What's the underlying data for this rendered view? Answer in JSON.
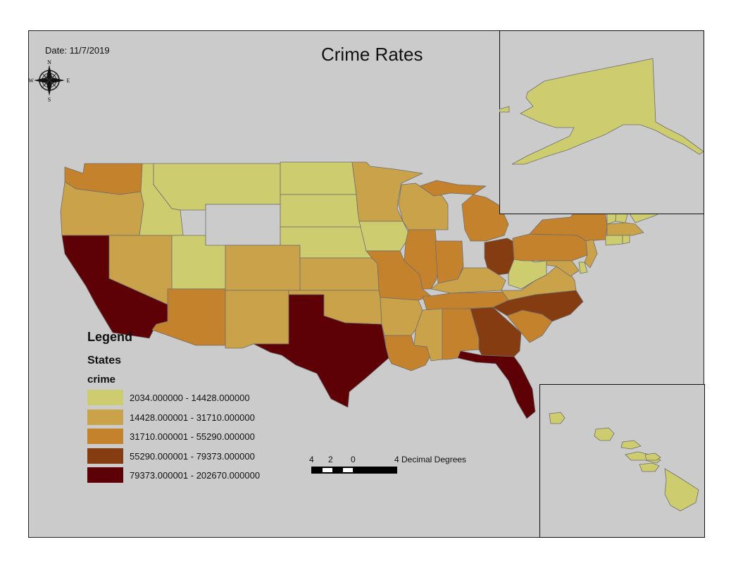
{
  "map": {
    "title": "Crime Rates",
    "date": "Date: 11/7/2019",
    "north_arrow": {
      "icon": "compass-rose-icon",
      "n": "N",
      "s": "S",
      "e": "E",
      "w": "W"
    },
    "background_color": "#cbcbcb"
  },
  "legend": {
    "title": "Legend",
    "layer": "States",
    "field": "crime",
    "classes": [
      {
        "label": "2034.000000 - 14428.000000",
        "color": "#cdcc6e"
      },
      {
        "label": "14428.000001 - 31710.000000",
        "color": "#c9a24a"
      },
      {
        "label": "31710.000001 - 55290.000000",
        "color": "#c5822c"
      },
      {
        "label": "55290.000001 - 79373.000000",
        "color": "#843c10"
      },
      {
        "label": "79373.000001 - 202670.000000",
        "color": "#5e0106"
      }
    ]
  },
  "scale_bar": {
    "ticks": [
      "4",
      "2",
      "0",
      "4 Decimal Degrees"
    ]
  },
  "regions": [
    {
      "name": "Washington",
      "class": 2
    },
    {
      "name": "Oregon",
      "class": 1
    },
    {
      "name": "California",
      "class": 4
    },
    {
      "name": "Idaho",
      "class": 0
    },
    {
      "name": "Nevada",
      "class": 1
    },
    {
      "name": "Utah",
      "class": 0
    },
    {
      "name": "Arizona",
      "class": 2
    },
    {
      "name": "Montana",
      "class": 0
    },
    {
      "name": "Wyoming",
      "class": null
    },
    {
      "name": "Colorado",
      "class": 1
    },
    {
      "name": "New Mexico",
      "class": 1
    },
    {
      "name": "North Dakota",
      "class": 0
    },
    {
      "name": "South Dakota",
      "class": 0
    },
    {
      "name": "Nebraska",
      "class": 0
    },
    {
      "name": "Kansas",
      "class": 1
    },
    {
      "name": "Oklahoma",
      "class": 1
    },
    {
      "name": "Texas",
      "class": 4
    },
    {
      "name": "Minnesota",
      "class": 1
    },
    {
      "name": "Iowa",
      "class": 0
    },
    {
      "name": "Missouri",
      "class": 2
    },
    {
      "name": "Arkansas",
      "class": 1
    },
    {
      "name": "Louisiana",
      "class": 2
    },
    {
      "name": "Wisconsin",
      "class": 1
    },
    {
      "name": "Illinois",
      "class": 2
    },
    {
      "name": "Michigan",
      "class": 2
    },
    {
      "name": "Indiana",
      "class": 2
    },
    {
      "name": "Ohio",
      "class": 3
    },
    {
      "name": "Kentucky",
      "class": 1
    },
    {
      "name": "Tennessee",
      "class": 2
    },
    {
      "name": "Mississippi",
      "class": 1
    },
    {
      "name": "Alabama",
      "class": 2
    },
    {
      "name": "Georgia",
      "class": 3
    },
    {
      "name": "Florida",
      "class": 4
    },
    {
      "name": "South Carolina",
      "class": 2
    },
    {
      "name": "North Carolina",
      "class": 3
    },
    {
      "name": "Virginia",
      "class": 1
    },
    {
      "name": "West Virginia",
      "class": 0
    },
    {
      "name": "Pennsylvania",
      "class": 2
    },
    {
      "name": "New York",
      "class": 2
    },
    {
      "name": "New Jersey",
      "class": 1
    },
    {
      "name": "Maryland",
      "class": 1
    },
    {
      "name": "Delaware",
      "class": 0
    },
    {
      "name": "Vermont",
      "class": 0
    },
    {
      "name": "New Hampshire",
      "class": 0
    },
    {
      "name": "Maine",
      "class": 0
    },
    {
      "name": "Massachusetts",
      "class": 1
    },
    {
      "name": "Connecticut",
      "class": 0
    },
    {
      "name": "Rhode Island",
      "class": 0
    },
    {
      "name": "Alaska",
      "class": 0
    },
    {
      "name": "Hawaii",
      "class": 0
    }
  ]
}
